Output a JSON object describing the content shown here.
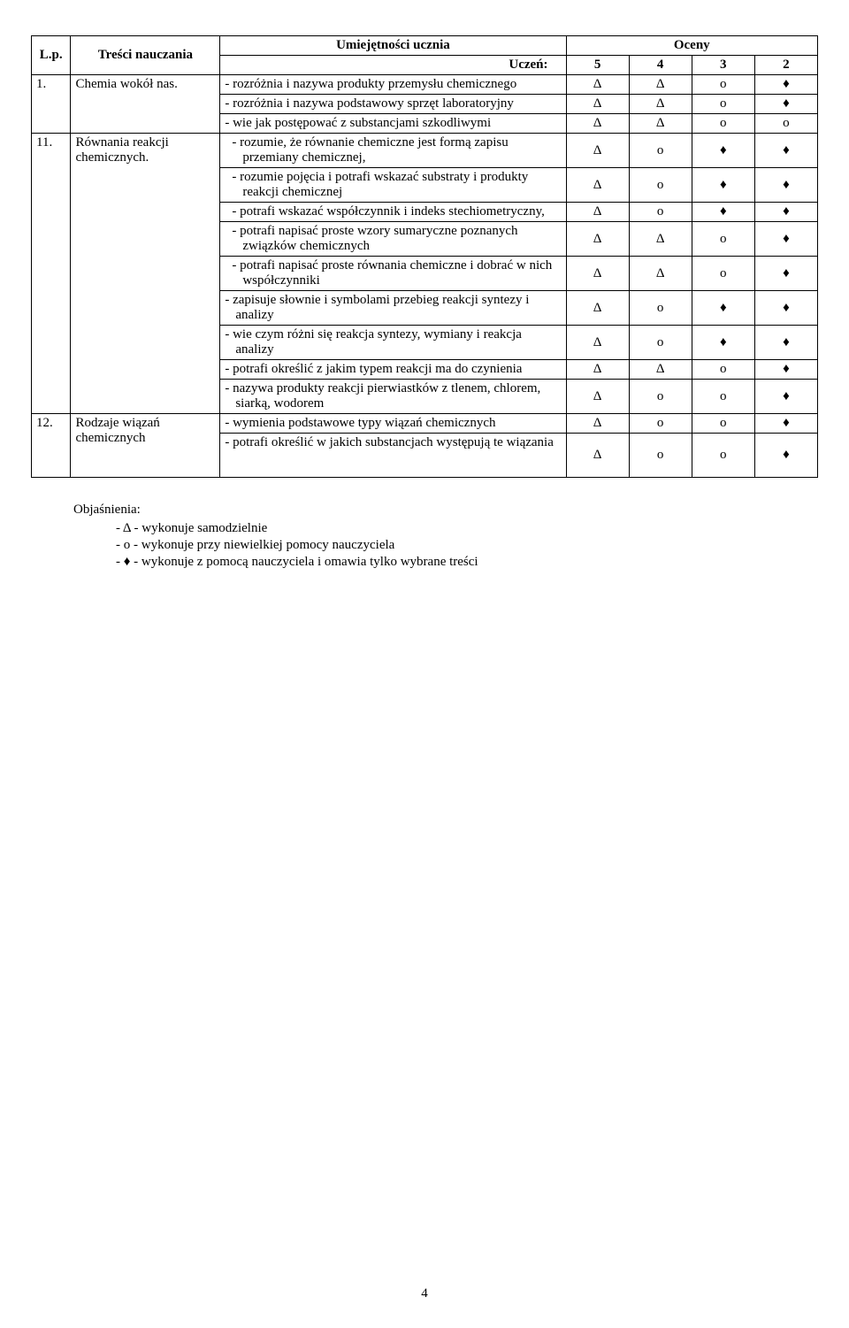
{
  "headers": {
    "lp": "L.p.",
    "content": "Treści nauczania",
    "skills": "Umiejętności ucznia",
    "skills_sub": "Uczeń:",
    "grades": "Oceny",
    "g5": "5",
    "g4": "4",
    "g3": "3",
    "g2": "2"
  },
  "symbols": {
    "delta": "Δ",
    "circle": "ο",
    "diamond": "♦"
  },
  "rows": [
    {
      "lp": "1.",
      "content": "Chemia wokół nas.",
      "skills": [
        {
          "text": "- rozróżnia i nazywa produkty przemysłu chemicznego",
          "g": [
            "Δ",
            "Δ",
            "ο",
            "♦"
          ]
        },
        {
          "text": "- rozróżnia i nazywa podstawowy sprzęt laboratoryjny",
          "g": [
            "Δ",
            "Δ",
            "ο",
            "♦"
          ]
        },
        {
          "text": "- wie jak postępować z substancjami szkodliwymi",
          "g": [
            "Δ",
            "Δ",
            "ο",
            "ο"
          ]
        }
      ]
    },
    {
      "lp": "11.",
      "content": "Równania reakcji chemicznych.",
      "skills": [
        {
          "text": "-  rozumie, że równanie chemiczne jest formą zapisu przemiany chemicznej,",
          "g": [
            "Δ",
            "ο",
            "♦",
            "♦"
          ],
          "indent": true
        },
        {
          "text": "-  rozumie pojęcia i potrafi wskazać substraty i produkty reakcji chemicznej",
          "g": [
            "Δ",
            "ο",
            "♦",
            "♦"
          ],
          "indent": true
        },
        {
          "text": "-  potrafi wskazać współczynnik i indeks stechiometryczny,",
          "g": [
            "Δ",
            "ο",
            "♦",
            "♦"
          ],
          "indent": true
        },
        {
          "text": "-  potrafi napisać proste wzory sumaryczne poznanych związków chemicznych",
          "g": [
            "Δ",
            "Δ",
            "ο",
            "♦"
          ],
          "indent": true
        },
        {
          "text": "-  potrafi napisać proste równania chemiczne i dobrać w nich współczynniki",
          "g": [
            "Δ",
            "Δ",
            "ο",
            "♦"
          ],
          "indent": true
        },
        {
          "text": "- zapisuje słownie i symbolami przebieg reakcji syntezy i analizy",
          "g": [
            "Δ",
            "ο",
            "♦",
            "♦"
          ]
        },
        {
          "text": "- wie czym różni się reakcja syntezy, wymiany i reakcja analizy",
          "g": [
            "Δ",
            "ο",
            "♦",
            "♦"
          ]
        },
        {
          "text": "- potrafi określić z jakim typem reakcji ma do czynienia",
          "g": [
            "Δ",
            "Δ",
            "ο",
            "♦"
          ]
        },
        {
          "text": "- nazywa produkty reakcji pierwiastków z tlenem, chlorem, siarką, wodorem",
          "g": [
            "Δ",
            "ο",
            "ο",
            "♦"
          ],
          "separated": true
        }
      ]
    },
    {
      "lp": "12.",
      "content": "Rodzaje wiązań chemicznych",
      "skills": [
        {
          "text": "- wymienia podstawowe typy wiązań chemicznych",
          "g": [
            "Δ",
            "ο",
            "ο",
            "♦"
          ]
        },
        {
          "text": "- potrafi określić w jakich substancjach występują te wiązania",
          "g": [
            "Δ",
            "ο",
            "ο",
            "♦"
          ],
          "extra_space": true
        }
      ]
    }
  ],
  "legend": {
    "title": "Objaśnienia:",
    "items": [
      "-   Δ - wykonuje samodzielnie",
      "-   ο - wykonuje przy niewielkiej pomocy nauczyciela",
      "-   ♦ - wykonuje z pomocą nauczyciela i omawia tylko wybrane treści"
    ]
  },
  "page_number": "4"
}
